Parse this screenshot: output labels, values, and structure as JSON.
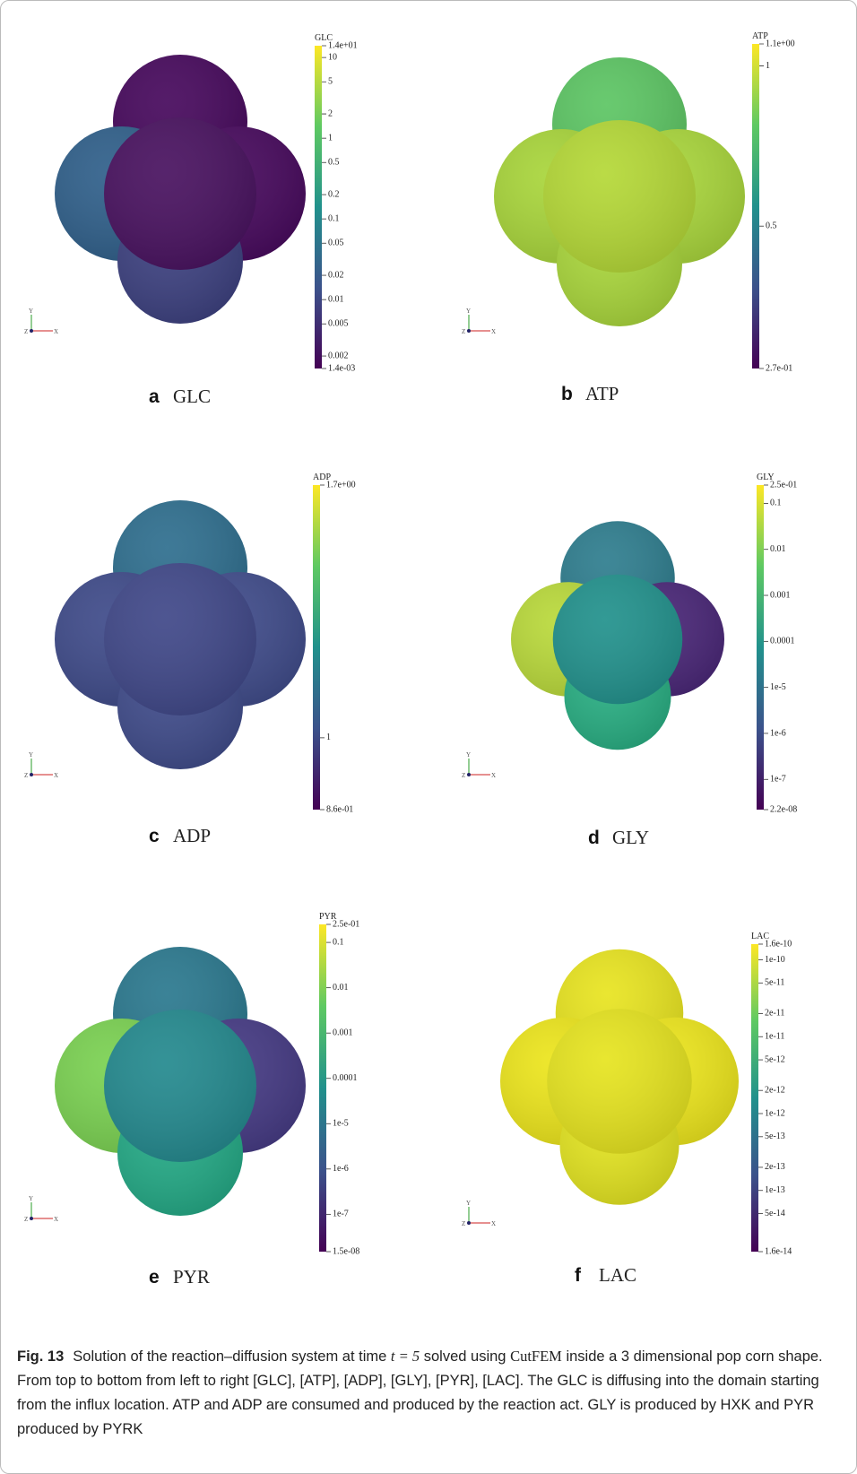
{
  "triad_labels": [
    "Y",
    "Z",
    "X"
  ],
  "panels": [
    {
      "letter": "a",
      "name": "GLC",
      "colorbar": {
        "title": "GLC",
        "scale": "log",
        "tick_labels": [
          "1.4e+01",
          "10",
          "5",
          "2",
          "1",
          "0.5",
          "0.2",
          "0.1",
          "0.05",
          "0.02",
          "0.01",
          "0.005",
          "0.002",
          "1.4e-03"
        ]
      }
    },
    {
      "letter": "b",
      "name": "ATP",
      "colorbar": {
        "title": "ATP",
        "scale": "log",
        "tick_labels": [
          "1.1e+00",
          "1",
          "0.5",
          "2.7e-01"
        ]
      }
    },
    {
      "letter": "c",
      "name": "ADP",
      "colorbar": {
        "title": "ADP",
        "scale": "log",
        "tick_labels": [
          "1.7e+00",
          "1",
          "8.6e-01"
        ]
      }
    },
    {
      "letter": "d",
      "name": "GLY",
      "colorbar": {
        "title": "GLY",
        "scale": "log",
        "tick_labels": [
          "2.5e-01",
          "0.1",
          "0.01",
          "0.001",
          "0.0001",
          "1e-5",
          "1e-6",
          "1e-7",
          "2.2e-08"
        ]
      }
    },
    {
      "letter": "e",
      "name": "PYR",
      "colorbar": {
        "title": "PYR",
        "scale": "log",
        "tick_labels": [
          "2.5e-01",
          "0.1",
          "0.01",
          "0.001",
          "0.0001",
          "1e-5",
          "1e-6",
          "1e-7",
          "1.5e-08"
        ]
      }
    },
    {
      "letter": "f",
      "name": "LAC",
      "colorbar": {
        "title": "LAC",
        "scale": "log",
        "tick_labels": [
          "1.6e-10",
          "1e-10",
          "5e-11",
          "2e-11",
          "1e-11",
          "5e-12",
          "2e-12",
          "1e-12",
          "5e-13",
          "2e-13",
          "1e-13",
          "5e-14",
          "1.6e-14"
        ]
      }
    }
  ],
  "caption": {
    "label": "Fig. 13",
    "text_1": "Solution of the reaction–diffusion system at time",
    "math": "t = 5",
    "text_2": "solved using",
    "method": "CutFEM",
    "text_3": "inside a 3 dimensional pop corn shape. From top to bottom from left to right [GLC], [ATP], [ADP], [GLY], [PYR], [LAC]. The GLC is diffusing into the domain starting from the influx location. ATP and ADP are consumed and produced by the reaction act. GLY is produced by HXK and PYR produced by PYRK"
  }
}
